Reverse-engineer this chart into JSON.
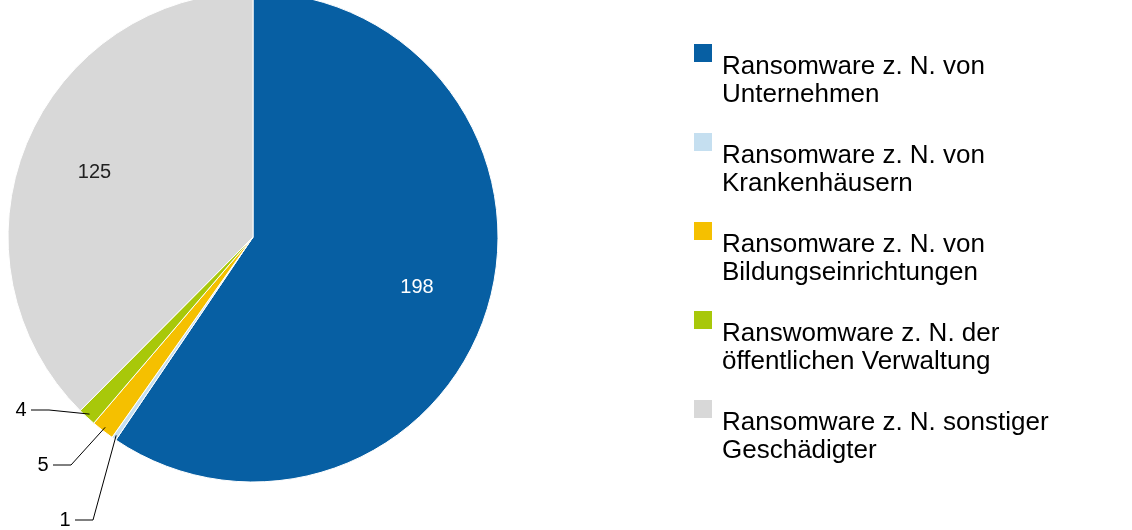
{
  "chart_data": {
    "type": "pie",
    "categories": [
      "Ransomware z. N. von Unternehmen",
      "Ransomware z. N. von Krankenhäusern",
      "Ransomware z. N. von Bildungseinrichtungen",
      "Ranswomware z. N. der öffentlichen Verwaltung",
      "Ransomware z. N. sonstiger Geschädigter"
    ],
    "values": [
      198,
      1,
      5,
      4,
      125
    ],
    "colors": [
      "#075fa3",
      "#c5dff0",
      "#f5c000",
      "#a8c80a",
      "#d8d8d8"
    ],
    "data_labels": true,
    "legend": "right"
  }
}
